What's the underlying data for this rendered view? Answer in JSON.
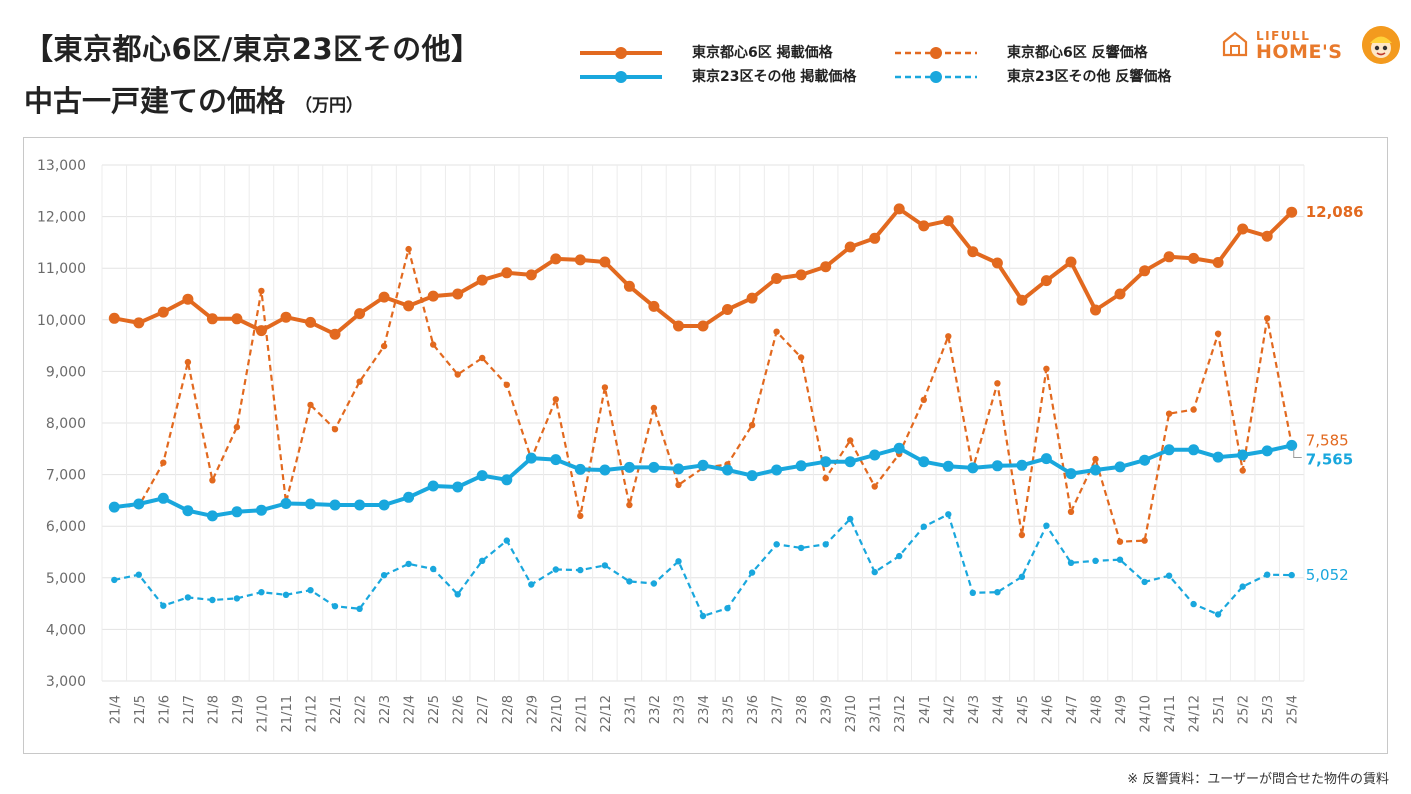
{
  "header": {
    "title_line1": "【東京都心6区/東京23区その他】",
    "title_line2": "中古一戸建ての価格",
    "unit": "（万円）"
  },
  "logo": {
    "brand_small": "LIFULL",
    "brand_big": "HOME'S",
    "accent": "#e8792b"
  },
  "legend": {
    "items": [
      {
        "label": "東京都心6区 掲載価格",
        "color": "#e2691f",
        "style": "solid"
      },
      {
        "label": "東京23区その他 掲載価格",
        "color": "#19a7dd",
        "style": "solid"
      },
      {
        "label": "東京都心6区 反響価格",
        "color": "#e2691f",
        "style": "dashed"
      },
      {
        "label": "東京23区その他 反響価格",
        "color": "#19a7dd",
        "style": "dashed"
      }
    ]
  },
  "footnote": "※ 反響賃料：ユーザーが問合せた物件の賃料",
  "chart_data": {
    "type": "line",
    "title": "中古一戸建ての価格",
    "xlabel": "",
    "ylabel": "万円",
    "ylim": [
      3000,
      13000
    ],
    "yticks": [
      3000,
      4000,
      5000,
      6000,
      7000,
      8000,
      9000,
      10000,
      11000,
      12000,
      13000
    ],
    "ytick_labels": [
      "3,000",
      "4,000",
      "5,000",
      "6,000",
      "7,000",
      "8,000",
      "9,000",
      "10,000",
      "11,000",
      "12,000",
      "13,000"
    ],
    "grid": true,
    "categories": [
      "21/4",
      "21/5",
      "21/6",
      "21/7",
      "21/8",
      "21/9",
      "21/10",
      "21/11",
      "21/12",
      "22/1",
      "22/2",
      "22/3",
      "22/4",
      "22/5",
      "22/6",
      "22/7",
      "22/8",
      "22/9",
      "22/10",
      "22/11",
      "22/12",
      "23/1",
      "23/2",
      "23/3",
      "23/4",
      "23/5",
      "23/6",
      "23/7",
      "23/8",
      "23/9",
      "23/10",
      "23/11",
      "23/12",
      "24/1",
      "24/2",
      "24/3",
      "24/4",
      "24/5",
      "24/6",
      "24/7",
      "24/8",
      "24/9",
      "24/10",
      "24/11",
      "24/12",
      "25/1",
      "25/2",
      "25/3",
      "25/4"
    ],
    "series": [
      {
        "name": "東京都心6区 掲載価格",
        "color": "#e2691f",
        "style": "solid",
        "values": [
          10030,
          9940,
          10150,
          10400,
          10020,
          10020,
          9790,
          10050,
          9950,
          9720,
          10120,
          10440,
          10270,
          10460,
          10500,
          10770,
          10910,
          10870,
          11180,
          11160,
          11120,
          10650,
          10260,
          9880,
          9880,
          10200,
          10420,
          10800,
          10870,
          11030,
          11410,
          11580,
          12150,
          11820,
          11920,
          11320,
          11100,
          10380,
          10760,
          11120,
          10190,
          10500,
          10950,
          11220,
          11190,
          11110,
          11760,
          11620,
          12086
        ]
      },
      {
        "name": "東京23区その他 掲載価格",
        "color": "#19a7dd",
        "style": "solid",
        "values": [
          6370,
          6430,
          6540,
          6300,
          6200,
          6280,
          6310,
          6440,
          6430,
          6410,
          6410,
          6410,
          6560,
          6780,
          6760,
          6980,
          6900,
          7320,
          7290,
          7100,
          7090,
          7140,
          7140,
          7110,
          7180,
          7090,
          6980,
          7090,
          7170,
          7250,
          7250,
          7380,
          7510,
          7250,
          7160,
          7130,
          7170,
          7180,
          7310,
          7020,
          7090,
          7150,
          7280,
          7480,
          7480,
          7340,
          7380,
          7460,
          7565
        ]
      },
      {
        "name": "東京都心6区 反響価格",
        "color": "#e2691f",
        "style": "dashed",
        "values": [
          6380,
          6390,
          7230,
          9180,
          6890,
          7920,
          10560,
          6460,
          8350,
          7880,
          8800,
          9490,
          11370,
          9520,
          8940,
          9260,
          8740,
          7300,
          8460,
          6200,
          8690,
          6410,
          8290,
          6800,
          7130,
          7200,
          7960,
          9770,
          9270,
          6930,
          7660,
          6770,
          7400,
          8450,
          9680,
          7110,
          8770,
          5830,
          9050,
          6280,
          7300,
          5700,
          5720,
          8180,
          8260,
          9730,
          7080,
          10030,
          7585
        ]
      },
      {
        "name": "東京23区その他 反響価格",
        "color": "#19a7dd",
        "style": "dashed",
        "values": [
          4960,
          5060,
          4460,
          4620,
          4570,
          4600,
          4720,
          4670,
          4760,
          4450,
          4400,
          5050,
          5270,
          5170,
          4680,
          5330,
          5720,
          4870,
          5160,
          5150,
          5240,
          4930,
          4890,
          5320,
          4260,
          4410,
          5100,
          5650,
          5580,
          5650,
          6140,
          5110,
          5420,
          5990,
          6230,
          4710,
          4720,
          5020,
          6010,
          5290,
          5330,
          5350,
          4920,
          5040,
          4490,
          4290,
          4830,
          5060,
          5052
        ]
      }
    ],
    "end_labels": [
      {
        "series": 0,
        "text": "12,086"
      },
      {
        "series": 2,
        "text": "7,585"
      },
      {
        "series": 1,
        "text": "7,565"
      },
      {
        "series": 3,
        "text": "5,052"
      }
    ]
  }
}
